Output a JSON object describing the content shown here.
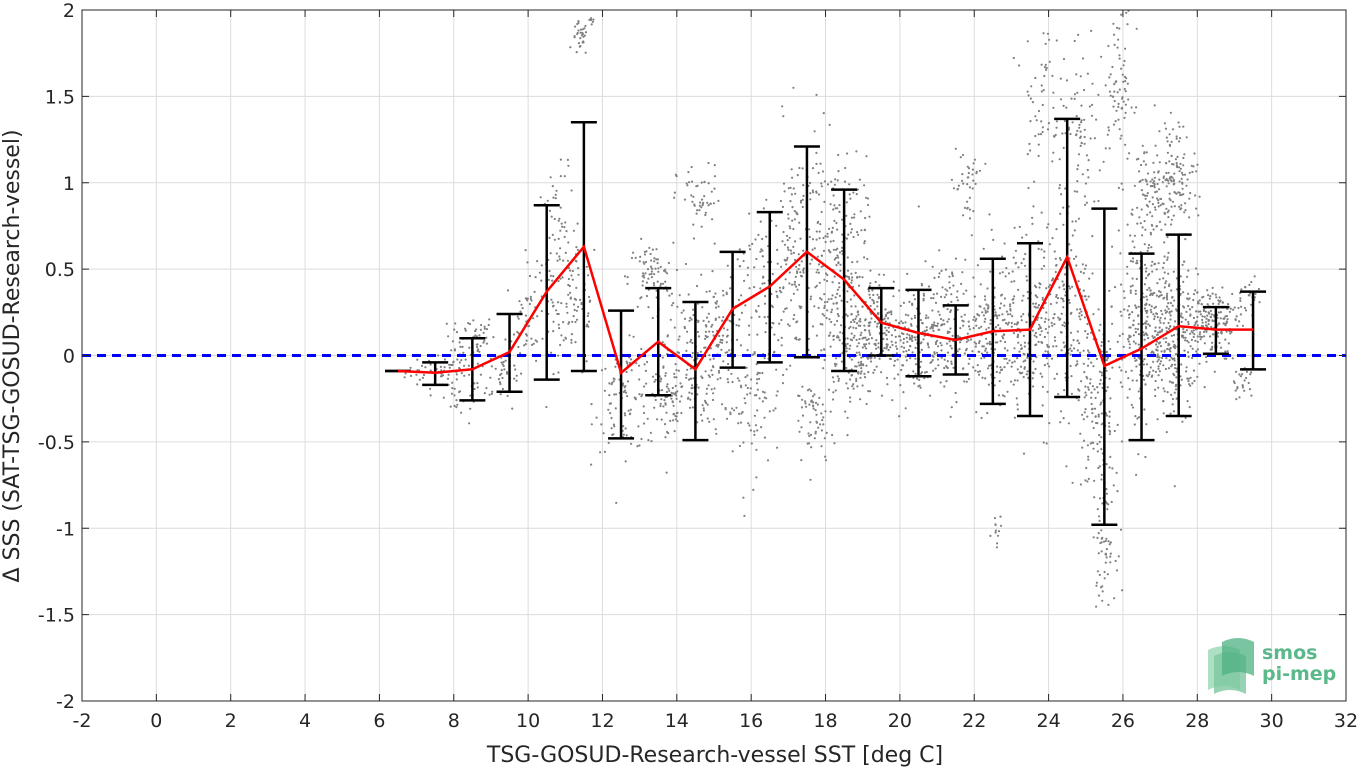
{
  "chart_data": {
    "type": "scatter",
    "xlabel": "TSG-GOSUD-Research-vessel SST [deg C]",
    "ylabel": "Δ SSS (SAT-TSG-GOSUD-Research-vessel)",
    "xlim": [
      -2,
      32
    ],
    "ylim": [
      -2,
      2
    ],
    "x_ticks": [
      -2,
      0,
      2,
      4,
      6,
      8,
      10,
      12,
      14,
      16,
      18,
      20,
      22,
      24,
      26,
      28,
      30,
      32
    ],
    "y_ticks": [
      -2,
      -1.5,
      -1,
      -0.5,
      0,
      0.5,
      1,
      1.5,
      2
    ],
    "x_tick_labels": [
      "-2",
      "0",
      "2",
      "4",
      "6",
      "8",
      "10",
      "12",
      "14",
      "16",
      "18",
      "20",
      "22",
      "24",
      "26",
      "28",
      "30",
      "32"
    ],
    "y_tick_labels": [
      "-2",
      "-1.5",
      "-1",
      "-0.5",
      "0",
      "0.5",
      "1",
      "1.5",
      "2"
    ],
    "grid": true,
    "reference_line": {
      "y": 0,
      "color": "#0000ff",
      "style": "dashed"
    },
    "series": [
      {
        "type": "line+errorbar",
        "color": "#ff0000",
        "errorbar_color": "#000000",
        "x": [
          6.5,
          7.5,
          8.5,
          9.5,
          10.5,
          11.5,
          12.5,
          13.5,
          14.5,
          15.5,
          16.5,
          17.5,
          18.5,
          19.5,
          20.5,
          21.5,
          22.5,
          23.5,
          24.5,
          25.5,
          26.5,
          27.5,
          28.5,
          29.5
        ],
        "y": [
          -0.09,
          -0.1,
          -0.08,
          0.02,
          0.37,
          0.63,
          -0.1,
          0.08,
          -0.08,
          0.27,
          0.4,
          0.6,
          0.44,
          0.19,
          0.13,
          0.09,
          0.14,
          0.15,
          0.57,
          -0.06,
          0.04,
          0.17,
          0.15,
          0.15
        ],
        "lower": [
          -0.09,
          -0.17,
          -0.26,
          -0.21,
          -0.14,
          -0.09,
          -0.48,
          -0.23,
          -0.49,
          -0.07,
          -0.04,
          -0.01,
          -0.09,
          0.0,
          -0.12,
          -0.11,
          -0.28,
          -0.35,
          -0.24,
          -0.98,
          -0.49,
          -0.35,
          0.01,
          -0.08
        ],
        "upper": [
          -0.09,
          -0.04,
          0.1,
          0.24,
          0.87,
          1.35,
          0.26,
          0.39,
          0.31,
          0.6,
          0.83,
          1.21,
          0.96,
          0.39,
          0.38,
          0.29,
          0.56,
          0.65,
          1.37,
          0.85,
          0.59,
          0.7,
          0.28,
          0.37
        ]
      }
    ],
    "scatter_color": "#808080",
    "scatter_clusters": [
      {
        "x": 7.5,
        "y": -0.1,
        "sx": 0.4,
        "sy": 0.05,
        "n": 40
      },
      {
        "x": 8.2,
        "y": -0.15,
        "sx": 0.3,
        "sy": 0.12,
        "n": 60
      },
      {
        "x": 8.5,
        "y": 0.12,
        "sx": 0.3,
        "sy": 0.06,
        "n": 40
      },
      {
        "x": 9.3,
        "y": -0.1,
        "sx": 0.3,
        "sy": 0.1,
        "n": 40
      },
      {
        "x": 10.0,
        "y": 0.2,
        "sx": 0.3,
        "sy": 0.15,
        "n": 60
      },
      {
        "x": 10.8,
        "y": 0.55,
        "sx": 0.3,
        "sy": 0.25,
        "n": 90
      },
      {
        "x": 11.3,
        "y": 0.3,
        "sx": 0.3,
        "sy": 0.2,
        "n": 60
      },
      {
        "x": 11.4,
        "y": 1.83,
        "sx": 0.1,
        "sy": 0.05,
        "n": 30
      },
      {
        "x": 11.7,
        "y": 1.95,
        "sx": 0.05,
        "sy": 0.02,
        "n": 8
      },
      {
        "x": 12.6,
        "y": -0.25,
        "sx": 0.4,
        "sy": 0.15,
        "n": 100
      },
      {
        "x": 13.3,
        "y": 0.45,
        "sx": 0.3,
        "sy": 0.1,
        "n": 80
      },
      {
        "x": 13.8,
        "y": -0.25,
        "sx": 0.4,
        "sy": 0.15,
        "n": 80
      },
      {
        "x": 14.4,
        "y": 0.0,
        "sx": 0.4,
        "sy": 0.2,
        "n": 140
      },
      {
        "x": 14.6,
        "y": 0.9,
        "sx": 0.3,
        "sy": 0.1,
        "n": 50
      },
      {
        "x": 15.3,
        "y": 0.1,
        "sx": 0.4,
        "sy": 0.25,
        "n": 100
      },
      {
        "x": 16.0,
        "y": -0.3,
        "sx": 0.4,
        "sy": 0.2,
        "n": 60
      },
      {
        "x": 16.5,
        "y": 0.3,
        "sx": 0.4,
        "sy": 0.25,
        "n": 100
      },
      {
        "x": 17.3,
        "y": 0.6,
        "sx": 0.4,
        "sy": 0.35,
        "n": 150
      },
      {
        "x": 17.7,
        "y": -0.4,
        "sx": 0.3,
        "sy": 0.15,
        "n": 60
      },
      {
        "x": 18.3,
        "y": 0.55,
        "sx": 0.4,
        "sy": 0.3,
        "n": 220
      },
      {
        "x": 18.7,
        "y": 0.0,
        "sx": 0.3,
        "sy": 0.15,
        "n": 100
      },
      {
        "x": 19.4,
        "y": 0.15,
        "sx": 0.4,
        "sy": 0.15,
        "n": 180
      },
      {
        "x": 20.4,
        "y": 0.1,
        "sx": 0.4,
        "sy": 0.15,
        "n": 150
      },
      {
        "x": 21.3,
        "y": 0.15,
        "sx": 0.4,
        "sy": 0.2,
        "n": 150
      },
      {
        "x": 21.8,
        "y": 1.0,
        "sx": 0.2,
        "sy": 0.15,
        "n": 40
      },
      {
        "x": 22.3,
        "y": 0.1,
        "sx": 0.3,
        "sy": 0.2,
        "n": 120
      },
      {
        "x": 22.6,
        "y": -1.05,
        "sx": 0.1,
        "sy": 0.06,
        "n": 12
      },
      {
        "x": 23.3,
        "y": 0.2,
        "sx": 0.4,
        "sy": 0.25,
        "n": 200
      },
      {
        "x": 23.8,
        "y": 1.5,
        "sx": 0.25,
        "sy": 0.25,
        "n": 60
      },
      {
        "x": 24.4,
        "y": 0.2,
        "sx": 0.4,
        "sy": 0.3,
        "n": 200
      },
      {
        "x": 24.9,
        "y": 1.2,
        "sx": 0.3,
        "sy": 0.25,
        "n": 80
      },
      {
        "x": 25.3,
        "y": -0.3,
        "sx": 0.3,
        "sy": 0.3,
        "n": 150
      },
      {
        "x": 25.5,
        "y": -1.1,
        "sx": 0.15,
        "sy": 0.15,
        "n": 60
      },
      {
        "x": 25.9,
        "y": 1.55,
        "sx": 0.2,
        "sy": 0.25,
        "n": 80
      },
      {
        "x": 26.5,
        "y": 0.15,
        "sx": 0.35,
        "sy": 0.3,
        "n": 250
      },
      {
        "x": 26.8,
        "y": 0.9,
        "sx": 0.3,
        "sy": 0.2,
        "n": 120
      },
      {
        "x": 27.4,
        "y": 0.1,
        "sx": 0.35,
        "sy": 0.2,
        "n": 250
      },
      {
        "x": 27.5,
        "y": 1.05,
        "sx": 0.25,
        "sy": 0.15,
        "n": 100
      },
      {
        "x": 28.4,
        "y": 0.2,
        "sx": 0.35,
        "sy": 0.1,
        "n": 180
      },
      {
        "x": 29.2,
        "y": -0.15,
        "sx": 0.2,
        "sy": 0.05,
        "n": 25
      },
      {
        "x": 29.4,
        "y": 0.35,
        "sx": 0.2,
        "sy": 0.05,
        "n": 25
      }
    ]
  },
  "logo": {
    "line1": "smos",
    "line2": "pi-mep",
    "color": "#5ab88a"
  }
}
